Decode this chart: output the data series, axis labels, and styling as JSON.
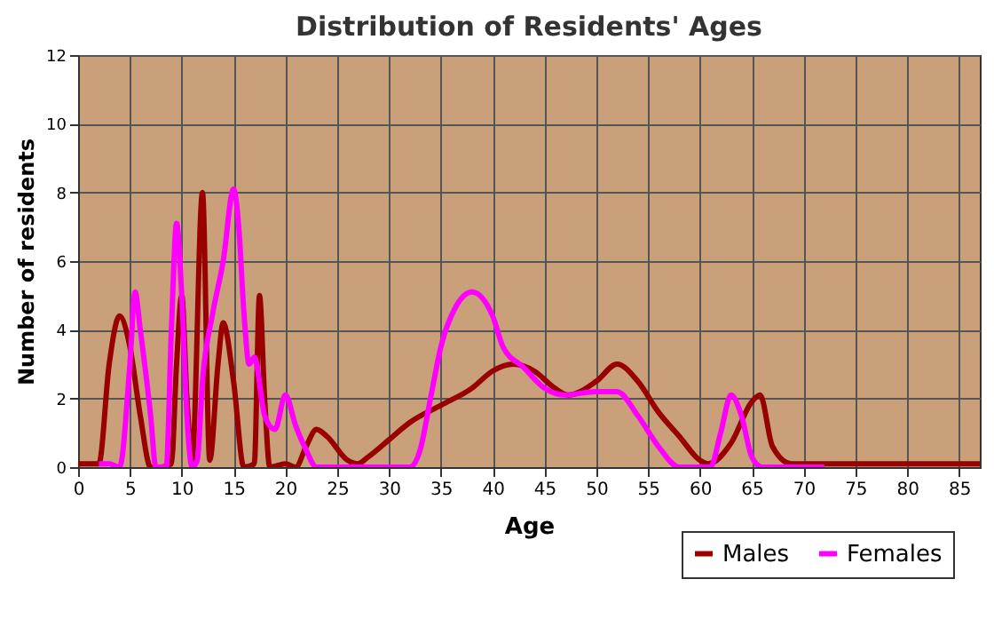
{
  "chart_data": {
    "type": "line",
    "title": "Distribution of Residents' Ages",
    "xlabel": "Age",
    "ylabel": "Number of residents",
    "xlim": [
      0,
      87
    ],
    "xticks": [
      0,
      5,
      10,
      15,
      20,
      25,
      30,
      35,
      40,
      45,
      50,
      55,
      60,
      65,
      70,
      75,
      80,
      85
    ],
    "ylim": [
      0,
      12
    ],
    "yticks": [
      0,
      2,
      4,
      6,
      8,
      10,
      12
    ],
    "grid": true,
    "legend": "bottom right",
    "marker": "none",
    "line_style": "solid",
    "series": [
      {
        "name": "Males",
        "color": "#990000",
        "x": [
          0,
          2,
          3,
          4,
          5,
          6,
          7,
          8,
          9,
          9.5,
          10,
          10.5,
          11,
          12,
          12.7,
          13.5,
          14,
          15,
          16,
          17,
          17.5,
          18,
          18.5,
          20,
          21,
          22,
          23,
          24,
          26,
          27,
          28,
          30,
          32,
          35,
          38,
          40,
          42,
          44,
          46,
          47.3,
          50,
          52,
          54,
          56,
          58,
          60,
          60.8,
          63,
          65,
          65.8,
          67,
          68.8,
          70,
          87
        ],
        "values": [
          0.1,
          0.1,
          3,
          4.4,
          3.5,
          1.5,
          0,
          0,
          0.1,
          3,
          5,
          2,
          0.2,
          8,
          0.2,
          3,
          4.2,
          2.5,
          0,
          0.1,
          5,
          2,
          0,
          0.1,
          0,
          0.6,
          1.1,
          0.9,
          0.2,
          0.1,
          0.3,
          0.8,
          1.3,
          1.8,
          2.3,
          2.8,
          3,
          2.8,
          2.3,
          2.1,
          2.5,
          3,
          2.5,
          1.6,
          0.9,
          0.2,
          0.1,
          0.7,
          1.9,
          2.1,
          0.6,
          0.1,
          0.1,
          0.1
        ]
      },
      {
        "name": "Females",
        "color": "#ff00ff",
        "x": [
          2,
          3,
          4,
          5,
          5.5,
          6,
          7,
          7.5,
          8.5,
          9,
          9.5,
          10,
          10.5,
          11,
          11.5,
          12,
          13,
          14,
          15,
          15.5,
          16,
          16.5,
          17,
          18,
          19,
          20,
          21,
          22,
          23,
          32,
          33,
          34,
          35,
          36.5,
          38,
          40,
          41,
          43,
          45,
          47,
          50,
          52,
          54,
          56,
          58,
          61,
          62,
          63,
          64,
          65,
          66,
          72
        ],
        "values": [
          0.1,
          0.1,
          0,
          3,
          5.1,
          4,
          1.5,
          0,
          0,
          4,
          7.1,
          5,
          1.5,
          0,
          0.2,
          2.5,
          4.5,
          6,
          8.1,
          7,
          4.5,
          3,
          3.2,
          1.5,
          1.1,
          2.1,
          1.2,
          0.5,
          0,
          0,
          0.5,
          2,
          3.5,
          4.7,
          5.1,
          4.4,
          3.5,
          2.9,
          2.3,
          2.1,
          2.2,
          2.2,
          1.5,
          0.6,
          0,
          0,
          1,
          2.1,
          1.5,
          0.3,
          0,
          0
        ]
      }
    ]
  }
}
